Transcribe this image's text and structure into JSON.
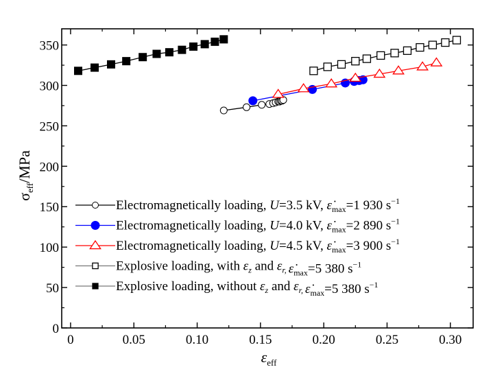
{
  "chart_data": {
    "type": "line",
    "title": "",
    "xlabel": "ε",
    "xlabel_sub": "eff",
    "ylabel": "σ",
    "ylabel_sub": "eff",
    "ylabel_unit": "/MPa",
    "xlim": [
      -0.007,
      0.318
    ],
    "ylim": [
      0,
      370
    ],
    "x_ticks": [
      0,
      0.05,
      0.1,
      0.15,
      0.2,
      0.25,
      0.3
    ],
    "x_tick_labels": [
      "0",
      "0.05",
      "0.10",
      "0.15",
      "0.20",
      "0.25",
      "0.30"
    ],
    "y_ticks": [
      0,
      50,
      100,
      150,
      200,
      250,
      300,
      350
    ],
    "y_tick_labels": [
      "0",
      "50",
      "100",
      "150",
      "200",
      "250",
      "300",
      "350"
    ],
    "grid": false,
    "legend_position": "lower-left",
    "series": [
      {
        "name": "Electromagnetically loading, U=3.5 kV, ε̇max=1 930 s−1",
        "legend": {
          "prefix": "Electromagnetically loading, ",
          "var": "U",
          "mid": "=3.5 kV, ",
          "tail": "=1 930 s",
          "exp": "−1"
        },
        "color": "#000000",
        "marker": "circle-open",
        "x": [
          0.121,
          0.139,
          0.151,
          0.157,
          0.16,
          0.162,
          0.164,
          0.165,
          0.166,
          0.167,
          0.168
        ],
        "y": [
          269,
          273,
          276,
          277,
          278,
          279,
          280,
          280,
          281,
          281,
          282
        ]
      },
      {
        "name": "Electromagnetically loading, U=4.0 kV, ε̇max=2 890 s−1",
        "legend": {
          "prefix": "Electromagnetically loading, ",
          "var": "U",
          "mid": "=4.0 kV, ",
          "tail": "=2 890 s",
          "exp": "−1"
        },
        "color": "#0000ff",
        "marker": "circle-filled",
        "x": [
          0.144,
          0.191,
          0.217,
          0.224,
          0.228,
          0.231
        ],
        "y": [
          281,
          295,
          303,
          305,
          306,
          307
        ]
      },
      {
        "name": "Electromagnetically loading, U=4.5 kV, ε̇max=3 900 s−1",
        "legend": {
          "prefix": "Electromagnetically loading, ",
          "var": "U",
          "mid": "=4.5 kV, ",
          "tail": "=3 900 s",
          "exp": "−1"
        },
        "color": "#ff0000",
        "marker": "triangle-open",
        "x": [
          0.164,
          0.184,
          0.206,
          0.225,
          0.244,
          0.259,
          0.278,
          0.289
        ],
        "y": [
          289,
          296,
          302,
          309,
          314,
          318,
          323,
          328
        ]
      },
      {
        "name": "Explosive loading, with εz and εr, ε̇max=5 380 s−1",
        "legend": {
          "prefix": "Explosive loading, with ",
          "tail": "=5 380 s",
          "exp": "−1",
          "conj": "and"
        },
        "color": "#000000",
        "marker": "square-open",
        "x": [
          0.192,
          0.203,
          0.214,
          0.225,
          0.234,
          0.245,
          0.256,
          0.266,
          0.276,
          0.286,
          0.296,
          0.305
        ],
        "y": [
          318,
          323,
          326,
          330,
          333,
          337,
          340,
          343,
          347,
          350,
          353,
          356
        ]
      },
      {
        "name": "Explosive loading, without εz and εr, ε̇max=5 380 s−1",
        "legend": {
          "prefix": "Explosive loading, without ",
          "tail": "=5 380 s",
          "exp": "−1",
          "conj": "and"
        },
        "color": "#000000",
        "marker": "square-filled",
        "x": [
          0.006,
          0.019,
          0.032,
          0.044,
          0.057,
          0.068,
          0.078,
          0.088,
          0.097,
          0.106,
          0.114,
          0.121
        ],
        "y": [
          318,
          322,
          326,
          330,
          335,
          339,
          341,
          344,
          348,
          351,
          354,
          357
        ]
      }
    ]
  }
}
